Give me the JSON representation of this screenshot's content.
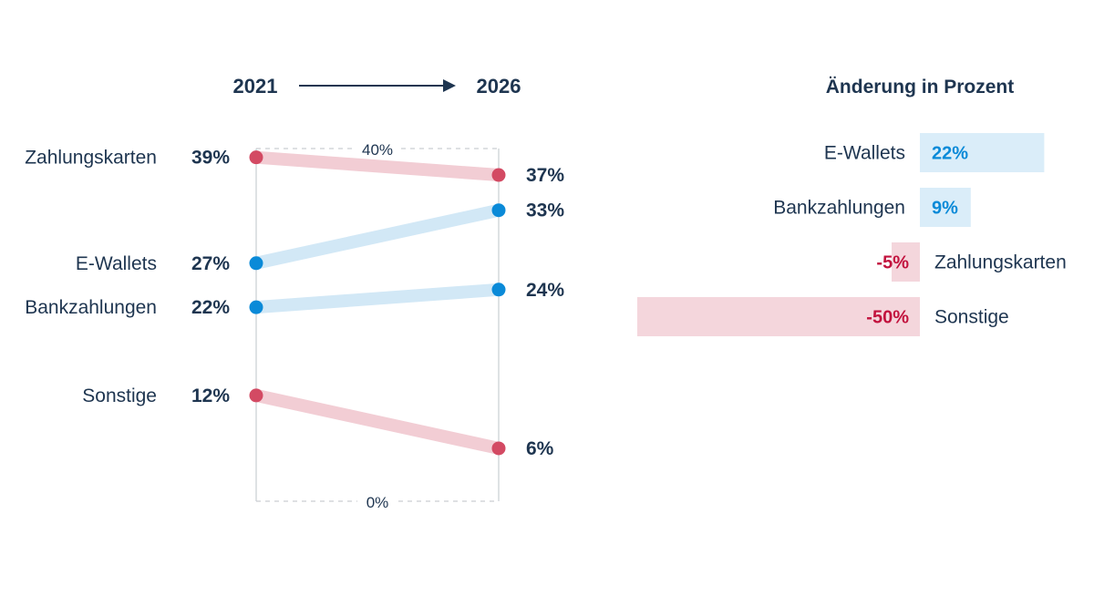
{
  "chart_data": [
    {
      "type": "slope",
      "x": [
        "2021",
        "2026"
      ],
      "ylim": [
        0,
        40
      ],
      "axis_labels": {
        "top": "40%",
        "bottom": "0%"
      },
      "series": [
        {
          "name": "Zahlungskarten",
          "values": [
            39,
            37
          ],
          "start_label": "39%",
          "end_label": "37%",
          "color": "#d34a63",
          "band_color": "#f2cdd4"
        },
        {
          "name": "E-Wallets",
          "values": [
            27,
            33
          ],
          "start_label": "27%",
          "end_label": "33%",
          "color": "#0a8ad8",
          "band_color": "#d2e8f6"
        },
        {
          "name": "Bankzahlungen",
          "values": [
            22,
            24
          ],
          "start_label": "22%",
          "end_label": "24%",
          "color": "#0a8ad8",
          "band_color": "#d2e8f6"
        },
        {
          "name": "Sonstige",
          "values": [
            12,
            6
          ],
          "start_label": "12%",
          "end_label": "6%",
          "color": "#d34a63",
          "band_color": "#f2cdd4"
        }
      ]
    },
    {
      "type": "bar",
      "title": "Änderung in Prozent",
      "categories": [
        "E-Wallets",
        "Bankzahlungen",
        "Zahlungskarten",
        "Sonstige"
      ],
      "values": [
        22,
        9,
        -5,
        -50
      ],
      "value_labels": [
        "22%",
        "9%",
        "-5%",
        "-50%"
      ],
      "colors": {
        "positive_bar": "#daedf9",
        "positive_text": "#0a8ad8",
        "negative_bar": "#f4d6dc",
        "negative_text": "#c2133e"
      }
    }
  ],
  "colors": {
    "text": "#1e3550",
    "gridline": "#c9cdd2"
  }
}
